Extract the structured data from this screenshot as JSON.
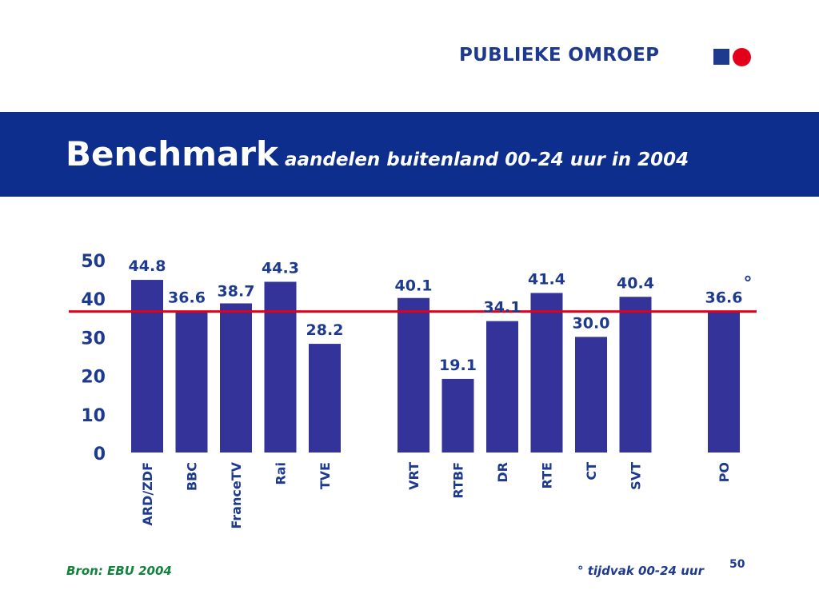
{
  "logo": {
    "text": "PUBLIEKE OMROEP",
    "square_color": "#1e3a8f",
    "circle_color": "#e3001b"
  },
  "header": {
    "title": "Benchmark",
    "subtitle": "aandelen buitenland 00-24 uur in 2004",
    "band_color": "#0d2e8c"
  },
  "chart_data": {
    "type": "bar",
    "categories": [
      "ARD/ZDF",
      "BBC",
      "FranceTV",
      "Rai",
      "TVE",
      "VRT",
      "RTBF",
      "DR",
      "RTE",
      "CT",
      "SVT",
      "PO"
    ],
    "values": [
      44.8,
      36.6,
      38.7,
      44.3,
      28.2,
      40.1,
      19.1,
      34.1,
      41.4,
      30.0,
      40.4,
      36.6
    ],
    "value_labels": [
      "44.8",
      "36.6",
      "38.7",
      "44.3",
      "28.2",
      "40.1",
      "19.1",
      "34.1",
      "41.4",
      "30.0",
      "40.4",
      "36.6"
    ],
    "groups": [
      [
        "ARD/ZDF",
        "BBC",
        "FranceTV",
        "Rai",
        "TVE"
      ],
      [
        "VRT",
        "RTBF",
        "DR",
        "RTE",
        "CT",
        "SVT"
      ],
      [
        "PO"
      ]
    ],
    "reference_line": {
      "value": 36.6,
      "color": "#e3001b"
    },
    "annotation": {
      "category": "PO",
      "text": "°"
    },
    "yticks": [
      "0",
      "10",
      "20",
      "30",
      "40",
      "50"
    ],
    "ylim": [
      0,
      50
    ],
    "bar_color": "#333399",
    "label_color": "#1e3a8f",
    "grid": false,
    "legend": false
  },
  "footer": {
    "source": "Bron: EBU 2004",
    "note": "° tijdvak 00-24 uur",
    "page_number": "50"
  }
}
